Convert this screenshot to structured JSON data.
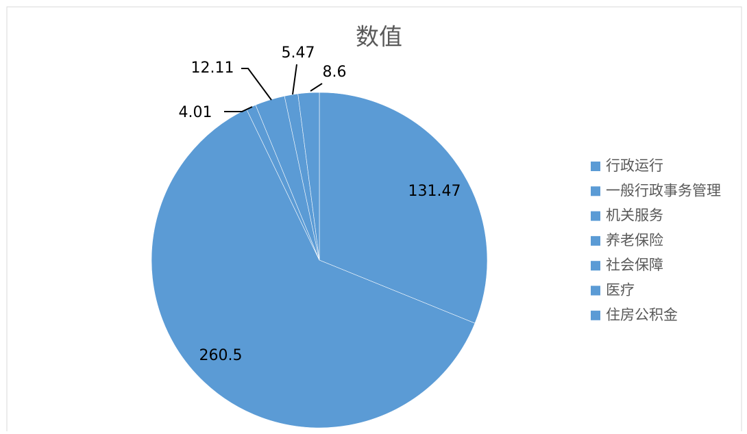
{
  "chart_data": {
    "type": "pie",
    "title": "数值",
    "categories": [
      "行政运行",
      "一般行政事务管理",
      "机关服务",
      "养老保险",
      "社会保障",
      "医疗",
      "住房公积金"
    ],
    "values": [
      131.47,
      260.5,
      4.01,
      12.11,
      5.47,
      8.6,
      null
    ],
    "color": "#5b9bd5"
  }
}
